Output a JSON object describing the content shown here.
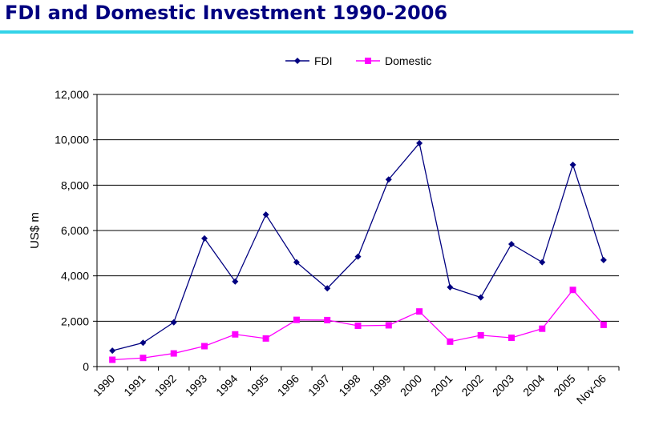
{
  "title": "FDI and Domestic Investment 1990-2006",
  "colors": {
    "title": "#000080",
    "underline": "#33d3e8",
    "fdi": "#000080",
    "domestic": "#ff00ff"
  },
  "chart_data": {
    "type": "line",
    "title": "",
    "xlabel": "",
    "ylabel": "US$ m",
    "categories": [
      "1990",
      "1991",
      "1992",
      "1993",
      "1994",
      "1995",
      "1996",
      "1997",
      "1998",
      "1999",
      "2000",
      "2001",
      "2002",
      "2003",
      "2004",
      "2005",
      "Nov-06"
    ],
    "series": [
      {
        "name": "FDI",
        "color": "#000080",
        "marker": "diamond",
        "values": [
          700,
          1050,
          1950,
          5650,
          3750,
          6700,
          4600,
          3450,
          4850,
          8250,
          9850,
          3500,
          3050,
          5400,
          4600,
          8900,
          4700
        ]
      },
      {
        "name": "Domestic",
        "color": "#ff00ff",
        "marker": "square",
        "values": [
          300,
          380,
          580,
          900,
          1420,
          1240,
          2060,
          2050,
          1800,
          1820,
          2430,
          1100,
          1380,
          1270,
          1670,
          3380,
          1840
        ]
      }
    ],
    "ylim": [
      0,
      12000
    ],
    "yticks": [
      "0",
      "2,000",
      "4,000",
      "6,000",
      "8,000",
      "10,000",
      "12,000"
    ],
    "ytick_values": [
      0,
      2000,
      4000,
      6000,
      8000,
      10000,
      12000
    ],
    "grid": true,
    "legend_position": "top-center"
  }
}
